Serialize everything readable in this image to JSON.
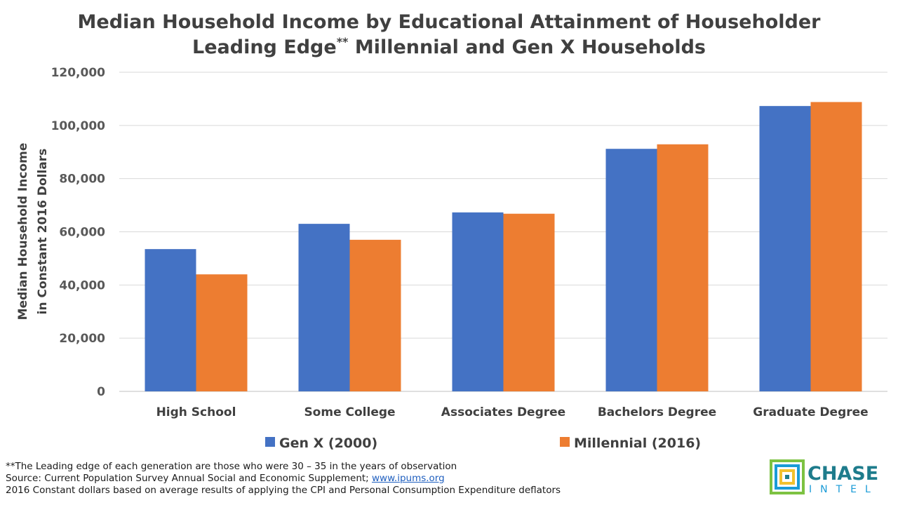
{
  "chart_data": {
    "type": "bar",
    "title_line1": "Median Household Income by Educational Attainment of Householder",
    "title_line2_pre": "Leading Edge",
    "title_line2_sup": "**",
    "title_line2_post": " Millennial and Gen X Households",
    "ylabel_line1": "Median Household Income",
    "ylabel_line2": "in Constant 2016 Dollars",
    "xlabel": "",
    "categories": [
      "High School",
      "Some College",
      "Associates Degree",
      "Bachelors Degree",
      "Graduate Degree"
    ],
    "series": [
      {
        "name": "Gen X (2000)",
        "color": "#4472C4",
        "values": [
          53500,
          63000,
          67300,
          91200,
          107300
        ]
      },
      {
        "name": "Millennial (2016)",
        "color": "#ED7D31",
        "values": [
          44000,
          57000,
          66800,
          92900,
          108800
        ]
      }
    ],
    "ylim": [
      0,
      120000
    ],
    "yticks": [
      {
        "value": 0,
        "label": "0"
      },
      {
        "value": 20000,
        "label": "20,000"
      },
      {
        "value": 40000,
        "label": "40,000"
      },
      {
        "value": 60000,
        "label": "60,000"
      },
      {
        "value": 80000,
        "label": "80,000"
      },
      {
        "value": 100000,
        "label": "100,000"
      },
      {
        "value": 120000,
        "label": "120,000"
      }
    ],
    "grid": true,
    "legend_position": "bottom"
  },
  "footnotes": {
    "line1": "**The Leading edge of each generation are those who were 30 – 35 in the years of observation",
    "line2_prefix": "Source: Current Population Survey Annual Social and Economic Supplement; ",
    "line2_link": "www.ipums.org",
    "line3": "2016 Constant dollars based on average results of applying the CPI and Personal Consumption Expenditure deflators"
  },
  "logo": {
    "word1": "CHASE",
    "word2": "INTEL",
    "colors": [
      "#1a9bd7",
      "#7dc242",
      "#f2c12e",
      "#1e7c8c"
    ]
  }
}
